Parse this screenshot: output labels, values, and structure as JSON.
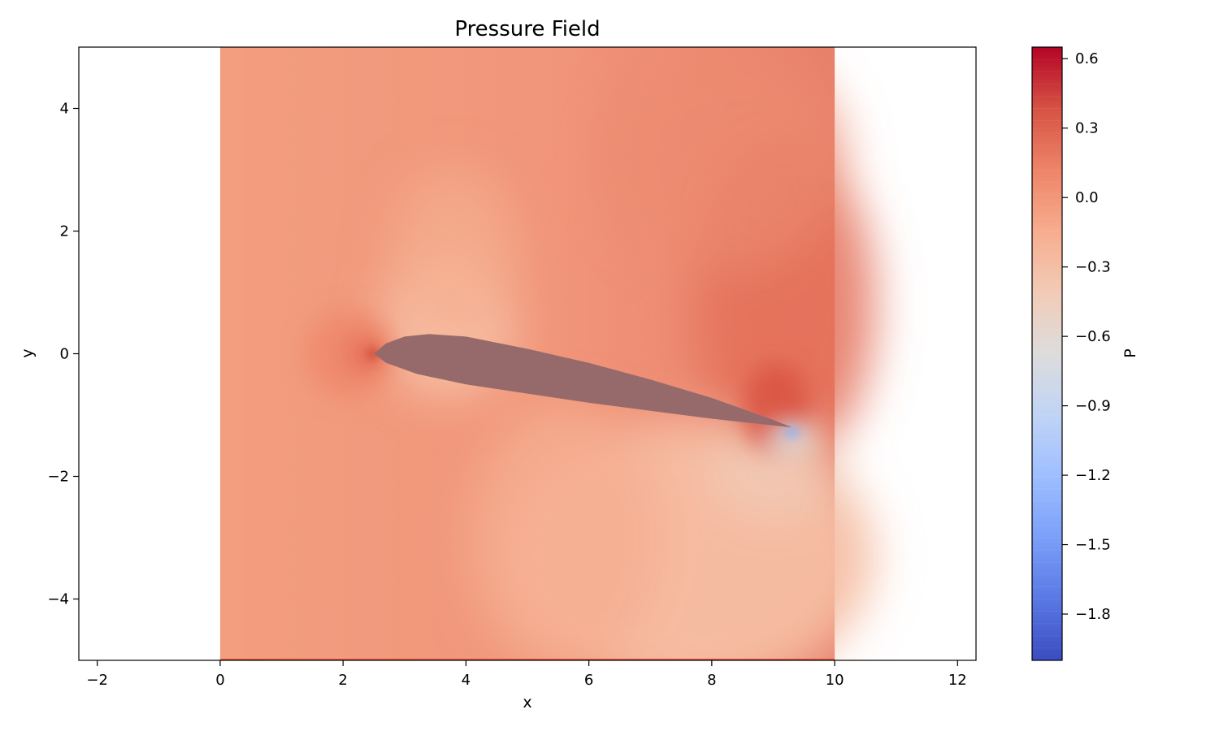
{
  "chart_data": {
    "type": "heatmap",
    "title": "Pressure Field",
    "xlabel": "x",
    "ylabel": "y",
    "xlim": [
      -2.3,
      12.3
    ],
    "ylim": [
      -5,
      5
    ],
    "x_ticks": [
      -2,
      0,
      2,
      4,
      6,
      8,
      10,
      12
    ],
    "y_ticks": [
      -4,
      -2,
      0,
      2,
      4
    ],
    "x_tick_labels": [
      "−2",
      "0",
      "2",
      "4",
      "6",
      "8",
      "10",
      "12"
    ],
    "y_tick_labels": [
      "−4",
      "−2",
      "0",
      "2",
      "4"
    ],
    "field_extent": {
      "x": [
        0,
        10
      ],
      "y": [
        -5,
        5
      ]
    },
    "colormap": "coolwarm",
    "colorbar": {
      "label": "P",
      "range": [
        -2.0,
        0.65
      ],
      "ticks": [
        0.6,
        0.3,
        0.0,
        -0.3,
        -0.6,
        -0.9,
        -1.2,
        -1.5,
        -1.8
      ],
      "tick_labels": [
        "0.6",
        "0.3",
        "0.0",
        "−0.3",
        "−0.6",
        "−0.9",
        "−1.2",
        "−1.5",
        "−1.8"
      ]
    },
    "airfoil": {
      "leading_edge": [
        2.5,
        0.0
      ],
      "trailing_edge": [
        9.3,
        -1.2
      ],
      "upper_surface": [
        [
          2.5,
          0.0
        ],
        [
          2.7,
          0.17
        ],
        [
          3.0,
          0.28
        ],
        [
          3.4,
          0.32
        ],
        [
          4.0,
          0.28
        ],
        [
          5.0,
          0.08
        ],
        [
          6.0,
          -0.15
        ],
        [
          7.0,
          -0.42
        ],
        [
          8.0,
          -0.72
        ],
        [
          9.0,
          -1.08
        ],
        [
          9.3,
          -1.2
        ]
      ],
      "lower_surface": [
        [
          9.3,
          -1.2
        ],
        [
          9.0,
          -1.17
        ],
        [
          8.0,
          -1.06
        ],
        [
          7.0,
          -0.93
        ],
        [
          6.0,
          -0.8
        ],
        [
          5.0,
          -0.65
        ],
        [
          4.0,
          -0.5
        ],
        [
          3.2,
          -0.33
        ],
        [
          2.7,
          -0.15
        ],
        [
          2.5,
          0.0
        ]
      ],
      "color": "#966a6a"
    },
    "field_colors": {
      "far_field": "#f39e7f",
      "upper_right": "#e8806a",
      "stagnation": "#d9523e",
      "suction": "#f4c3a9",
      "wake_lower": "#f5bea3",
      "tip_low": "#8ab4f8"
    }
  }
}
